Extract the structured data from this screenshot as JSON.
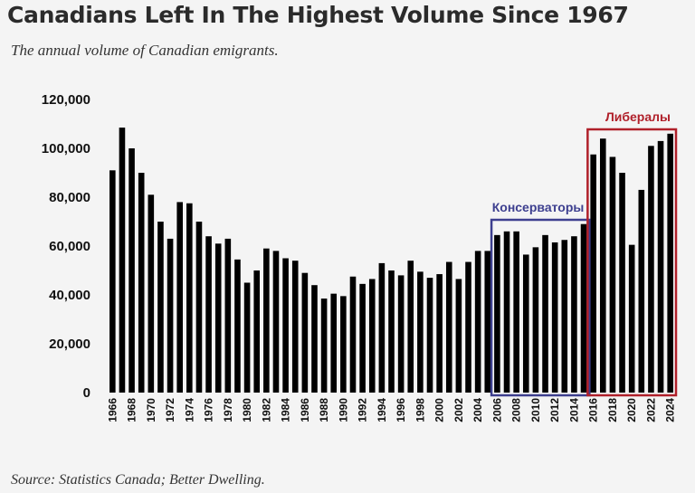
{
  "title": "Canadians Left In The Highest Volume Since 1967",
  "subtitle": "The annual volume of Canadian emigrants.",
  "source": "Source: Statistics Canada; Better Dwelling.",
  "colors": {
    "bar": "#000000",
    "conservatives_box": "#3d3f8f",
    "liberals_box": "#b0202a"
  },
  "chart_data": {
    "type": "bar",
    "title": "Canadians Left In The Highest Volume Since 1967",
    "subtitle": "The annual volume of Canadian emigrants.",
    "xlabel": "",
    "ylabel": "",
    "ylim": [
      0,
      120000
    ],
    "yticks": [
      "0",
      "20,000",
      "40,000",
      "60,000",
      "80,000",
      "100,000",
      "120,000"
    ],
    "grid": false,
    "categories": [
      1966,
      1967,
      1968,
      1969,
      1970,
      1971,
      1972,
      1973,
      1974,
      1975,
      1976,
      1977,
      1978,
      1979,
      1980,
      1981,
      1982,
      1983,
      1984,
      1985,
      1986,
      1987,
      1988,
      1989,
      1990,
      1991,
      1992,
      1993,
      1994,
      1995,
      1996,
      1997,
      1998,
      1999,
      2000,
      2001,
      2002,
      2003,
      2004,
      2005,
      2006,
      2007,
      2008,
      2009,
      2010,
      2011,
      2012,
      2013,
      2014,
      2015,
      2016,
      2017,
      2018,
      2019,
      2020,
      2021,
      2022,
      2023,
      2024
    ],
    "xtick_labels": [
      "1966",
      "1968",
      "1970",
      "1972",
      "1974",
      "1976",
      "1978",
      "1980",
      "1982",
      "1984",
      "1986",
      "1988",
      "1990",
      "1992",
      "1994",
      "1996",
      "1998",
      "2000",
      "2002",
      "2004",
      "2006",
      "2008",
      "2010",
      "2012",
      "2014",
      "2016",
      "2018",
      "2020",
      "2022",
      "2024"
    ],
    "values": [
      91000,
      108500,
      100000,
      90000,
      81000,
      70000,
      63000,
      78000,
      77500,
      70000,
      64000,
      61000,
      63000,
      54500,
      45000,
      50000,
      59000,
      58000,
      55000,
      54000,
      49000,
      44000,
      38500,
      40500,
      39500,
      47500,
      44500,
      46500,
      53000,
      50000,
      48000,
      54000,
      49500,
      47000,
      48500,
      53500,
      46500,
      53500,
      58000,
      58000,
      64500,
      66000,
      66000,
      56500,
      59500,
      64500,
      61500,
      62500,
      64000,
      69000,
      97500,
      104000,
      96500,
      90000,
      60500,
      83000,
      101000,
      103000,
      106000
    ],
    "annotations": [
      {
        "label": "Консерваторы",
        "from": 2006,
        "to": 2015,
        "color": "#3d3f8f"
      },
      {
        "label": "Либералы",
        "from": 2016,
        "to": 2024,
        "color": "#b0202a"
      }
    ]
  }
}
